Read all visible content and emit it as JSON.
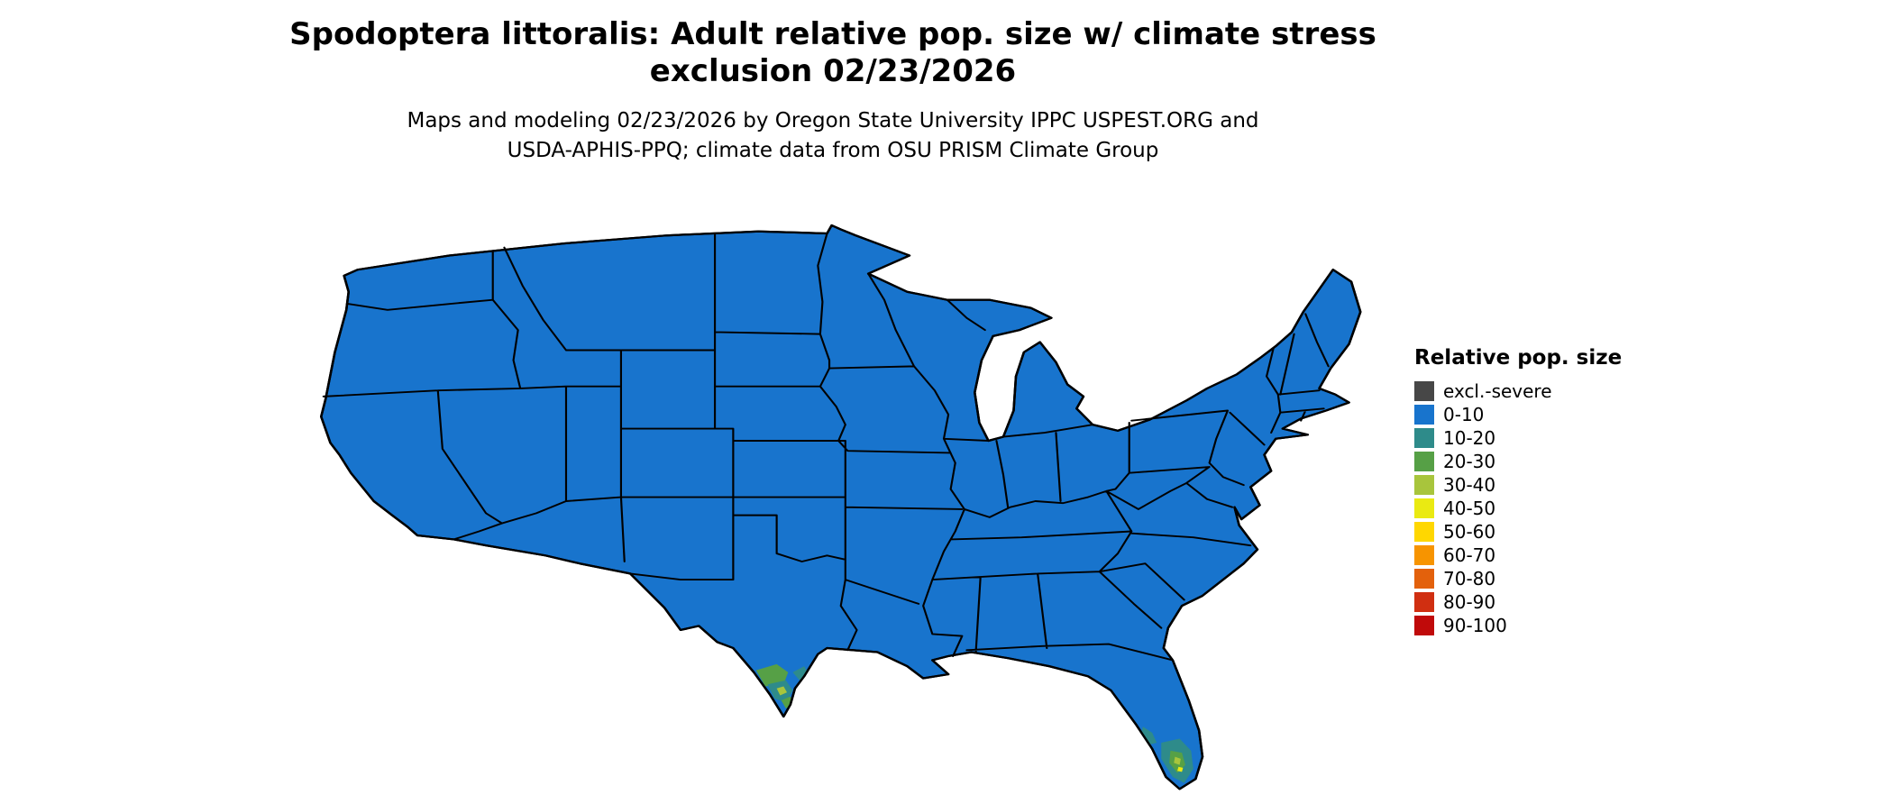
{
  "title": {
    "line1": "Spodoptera littoralis: Adult relative pop. size w/ climate stress",
    "line2": "exclusion 02/23/2026"
  },
  "subtitle": {
    "line1": "Maps and modeling 02/23/2026 by Oregon State University IPPC USPEST.ORG and",
    "line2": "USDA-APHIS-PPQ; climate data from OSU PRISM Climate Group"
  },
  "legend": {
    "title": "Relative pop. size",
    "items": [
      {
        "label": "excl.-severe",
        "color": "#474747"
      },
      {
        "label": "0-10",
        "color": "#1874cd"
      },
      {
        "label": "10-20",
        "color": "#2e8b8a"
      },
      {
        "label": "20-30",
        "color": "#56a046"
      },
      {
        "label": "30-40",
        "color": "#a8c53c"
      },
      {
        "label": "40-50",
        "color": "#eaea12"
      },
      {
        "label": "50-60",
        "color": "#ffd700"
      },
      {
        "label": "60-70",
        "color": "#f79400"
      },
      {
        "label": "70-80",
        "color": "#e3610c"
      },
      {
        "label": "80-90",
        "color": "#d02f11"
      },
      {
        "label": "90-100",
        "color": "#c00a0a"
      }
    ]
  },
  "map": {
    "land_value_class": "0-10",
    "border_color": "#000000",
    "background": "#ffffff",
    "hotspots": [
      {
        "region": "southern Texas coast / Rio Grande valley",
        "value_classes": [
          "10-20",
          "20-30",
          "30-40"
        ]
      },
      {
        "region": "southern Florida",
        "value_classes": [
          "10-20",
          "20-30",
          "30-40",
          "40-50"
        ]
      }
    ]
  }
}
